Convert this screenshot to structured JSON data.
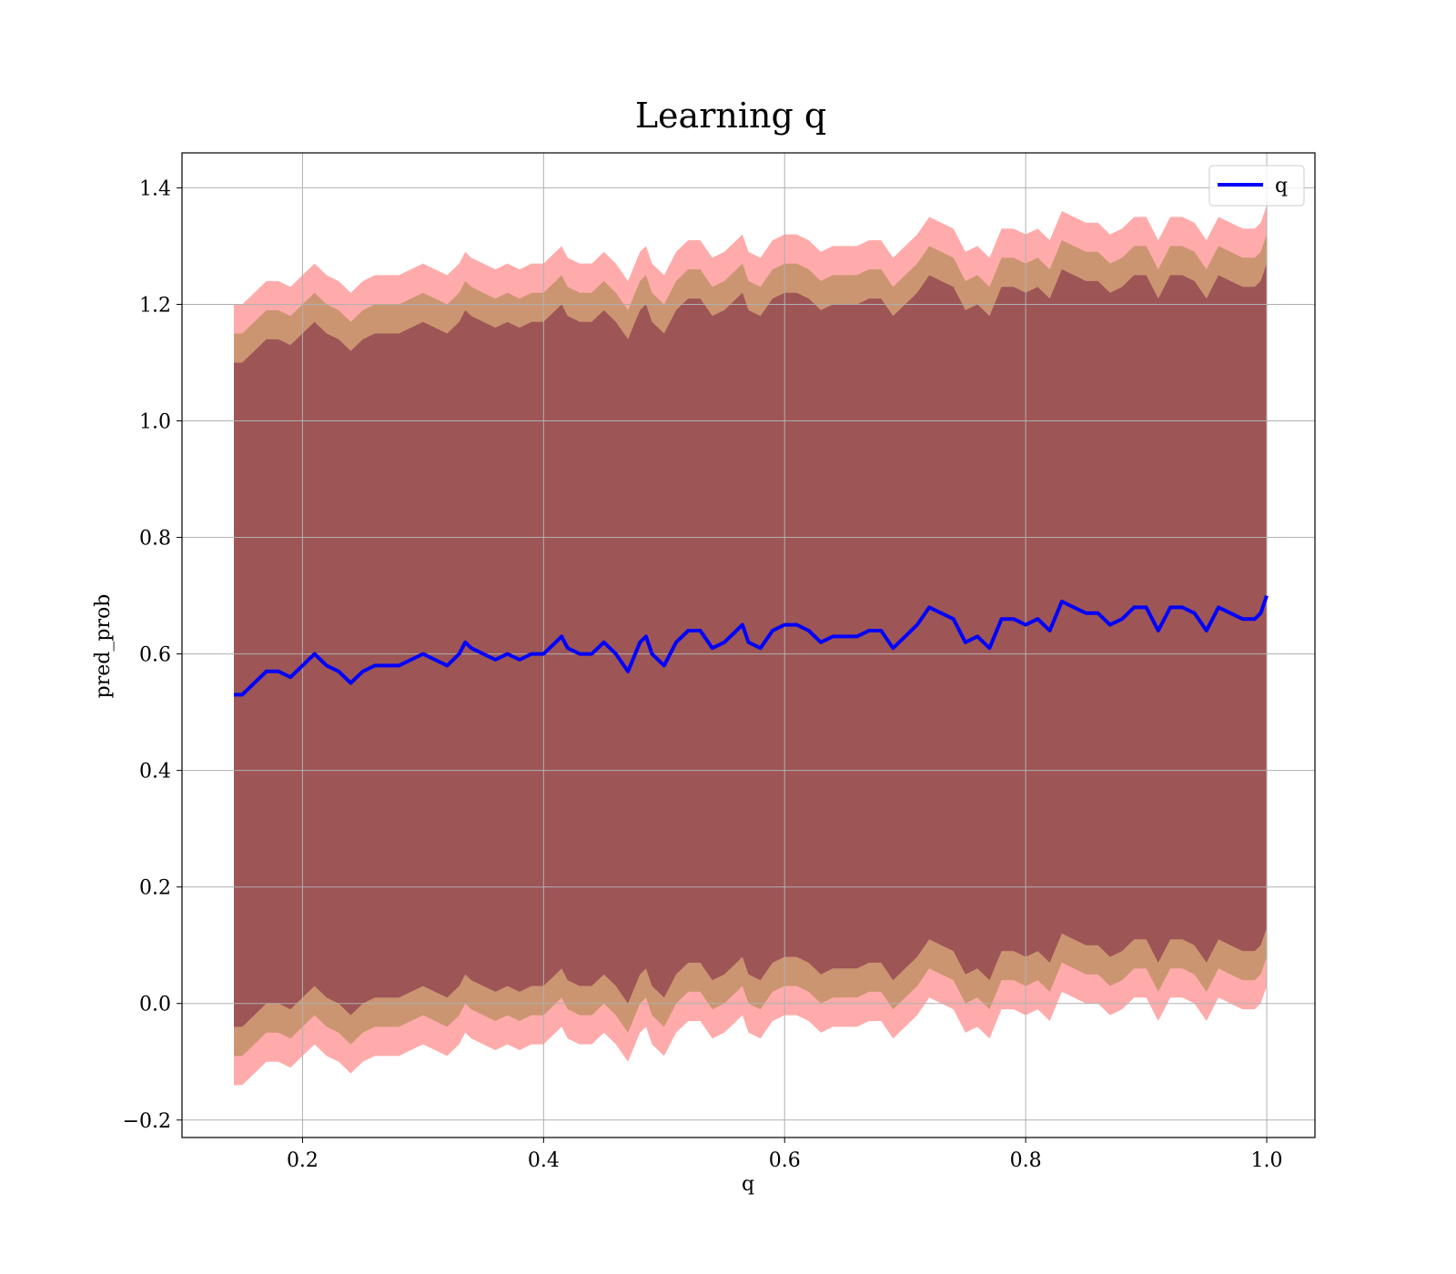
{
  "chart_data": {
    "type": "line",
    "title": "Learning q",
    "xlabel": "q",
    "ylabel": "pred_prob",
    "xlim": [
      0.1,
      1.04
    ],
    "ylim": [
      -0.23,
      1.46
    ],
    "grid": true,
    "legend_position": "top-right",
    "x_ticks": [
      0.2,
      0.4,
      0.6,
      0.8,
      1.0
    ],
    "x_tick_labels": [
      "0.2",
      "0.4",
      "0.6",
      "0.8",
      "1.0"
    ],
    "y_ticks": [
      -0.2,
      0.0,
      0.2,
      0.4,
      0.6,
      0.8,
      1.0,
      1.2,
      1.4
    ],
    "y_tick_labels": [
      "−0.2",
      "0.0",
      "0.2",
      "0.4",
      "0.6",
      "0.8",
      "1.0",
      "1.2",
      "1.4"
    ],
    "series": [
      {
        "name": "q",
        "color": "#0000ff",
        "x": [
          0.143,
          0.15,
          0.16,
          0.17,
          0.18,
          0.19,
          0.2,
          0.21,
          0.22,
          0.23,
          0.24,
          0.25,
          0.26,
          0.27,
          0.28,
          0.29,
          0.3,
          0.31,
          0.32,
          0.33,
          0.335,
          0.34,
          0.35,
          0.36,
          0.37,
          0.38,
          0.39,
          0.4,
          0.41,
          0.415,
          0.42,
          0.43,
          0.44,
          0.45,
          0.46,
          0.47,
          0.48,
          0.485,
          0.49,
          0.5,
          0.51,
          0.52,
          0.53,
          0.54,
          0.55,
          0.56,
          0.565,
          0.57,
          0.58,
          0.59,
          0.6,
          0.61,
          0.62,
          0.63,
          0.64,
          0.65,
          0.66,
          0.67,
          0.68,
          0.69,
          0.7,
          0.71,
          0.72,
          0.73,
          0.74,
          0.75,
          0.76,
          0.77,
          0.78,
          0.79,
          0.8,
          0.81,
          0.82,
          0.83,
          0.84,
          0.85,
          0.86,
          0.87,
          0.88,
          0.89,
          0.9,
          0.91,
          0.92,
          0.93,
          0.94,
          0.95,
          0.96,
          0.97,
          0.98,
          0.99,
          0.995,
          1.0
        ],
        "y": [
          0.53,
          0.53,
          0.55,
          0.57,
          0.57,
          0.56,
          0.58,
          0.6,
          0.58,
          0.57,
          0.55,
          0.57,
          0.58,
          0.58,
          0.58,
          0.59,
          0.6,
          0.59,
          0.58,
          0.6,
          0.62,
          0.61,
          0.6,
          0.59,
          0.6,
          0.59,
          0.6,
          0.6,
          0.62,
          0.63,
          0.61,
          0.6,
          0.6,
          0.62,
          0.6,
          0.57,
          0.62,
          0.63,
          0.6,
          0.58,
          0.62,
          0.64,
          0.64,
          0.61,
          0.62,
          0.64,
          0.65,
          0.62,
          0.61,
          0.64,
          0.65,
          0.65,
          0.64,
          0.62,
          0.63,
          0.63,
          0.63,
          0.64,
          0.64,
          0.61,
          0.63,
          0.65,
          0.68,
          0.67,
          0.66,
          0.62,
          0.63,
          0.61,
          0.66,
          0.66,
          0.65,
          0.66,
          0.64,
          0.69,
          0.68,
          0.67,
          0.67,
          0.65,
          0.66,
          0.68,
          0.68,
          0.64,
          0.68,
          0.68,
          0.67,
          0.64,
          0.68,
          0.67,
          0.66,
          0.66,
          0.67,
          0.7
        ],
        "outer_band_half_width": 0.67,
        "inner_band_half_width": 0.62,
        "core_band_half_width": 0.57
      }
    ]
  },
  "colors": {
    "outer_band": "#ff6666",
    "inner_band": "#8b7a2a",
    "core_band": "#7a2040",
    "line": "#0000ff",
    "grid": "#b0b0b0"
  }
}
